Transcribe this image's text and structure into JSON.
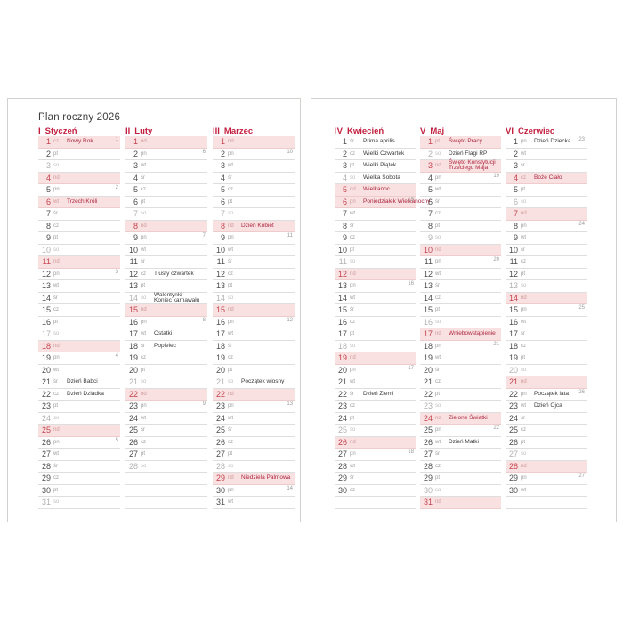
{
  "page": {
    "title": "Plan roczny 2026"
  },
  "colors": {
    "accent": "#c32040",
    "sunday_number": "#c4424e",
    "holiday_text": "#ad2740",
    "highlight_bg": "#f9e1e1",
    "row_line": "#dedede"
  },
  "calendar": {
    "months": [
      {
        "numeral": "I",
        "name": "Styczeń",
        "days": [
          {
            "d": 1,
            "wd": "cz",
            "hl": true,
            "h": "Nowy Rok",
            "hr": true,
            "wk": 1
          },
          {
            "d": 2,
            "wd": "pt"
          },
          {
            "d": 3,
            "wd": "so",
            "sat": true
          },
          {
            "d": 4,
            "wd": "nd",
            "hl": true
          },
          {
            "d": 5,
            "wd": "pn",
            "wk": 2
          },
          {
            "d": 6,
            "wd": "wt",
            "hl": true,
            "h": "Trzech Króli",
            "hr": true
          },
          {
            "d": 7,
            "wd": "śr"
          },
          {
            "d": 8,
            "wd": "cz"
          },
          {
            "d": 9,
            "wd": "pt"
          },
          {
            "d": 10,
            "wd": "so",
            "sat": true
          },
          {
            "d": 11,
            "wd": "nd",
            "hl": true
          },
          {
            "d": 12,
            "wd": "pn",
            "wk": 3
          },
          {
            "d": 13,
            "wd": "wt"
          },
          {
            "d": 14,
            "wd": "śr"
          },
          {
            "d": 15,
            "wd": "cz"
          },
          {
            "d": 16,
            "wd": "pt"
          },
          {
            "d": 17,
            "wd": "so",
            "sat": true
          },
          {
            "d": 18,
            "wd": "nd",
            "hl": true
          },
          {
            "d": 19,
            "wd": "pn",
            "wk": 4
          },
          {
            "d": 20,
            "wd": "wt"
          },
          {
            "d": 21,
            "wd": "śr",
            "h": "Dzień Babci"
          },
          {
            "d": 22,
            "wd": "cz",
            "h": "Dzień Dziadka"
          },
          {
            "d": 23,
            "wd": "pt"
          },
          {
            "d": 24,
            "wd": "so",
            "sat": true
          },
          {
            "d": 25,
            "wd": "nd",
            "hl": true
          },
          {
            "d": 26,
            "wd": "pn",
            "wk": 5
          },
          {
            "d": 27,
            "wd": "wt"
          },
          {
            "d": 28,
            "wd": "śr"
          },
          {
            "d": 29,
            "wd": "cz"
          },
          {
            "d": 30,
            "wd": "pt"
          },
          {
            "d": 31,
            "wd": "so",
            "sat": true
          }
        ]
      },
      {
        "numeral": "II",
        "name": "Luty",
        "days": [
          {
            "d": 1,
            "wd": "nd",
            "hl": true
          },
          {
            "d": 2,
            "wd": "pn",
            "wk": 6
          },
          {
            "d": 3,
            "wd": "wt"
          },
          {
            "d": 4,
            "wd": "śr"
          },
          {
            "d": 5,
            "wd": "cz"
          },
          {
            "d": 6,
            "wd": "pt"
          },
          {
            "d": 7,
            "wd": "so",
            "sat": true
          },
          {
            "d": 8,
            "wd": "nd",
            "hl": true
          },
          {
            "d": 9,
            "wd": "pn",
            "wk": 7
          },
          {
            "d": 10,
            "wd": "wt"
          },
          {
            "d": 11,
            "wd": "śr"
          },
          {
            "d": 12,
            "wd": "cz",
            "h": "Tłusty czwartek"
          },
          {
            "d": 13,
            "wd": "pt"
          },
          {
            "d": 14,
            "wd": "so",
            "sat": true,
            "h": "Walentynki",
            "h2": "Koniec karnawału"
          },
          {
            "d": 15,
            "wd": "nd",
            "hl": true
          },
          {
            "d": 16,
            "wd": "pn",
            "wk": 8
          },
          {
            "d": 17,
            "wd": "wt",
            "h": "Ostatki"
          },
          {
            "d": 18,
            "wd": "śr",
            "h": "Popielec"
          },
          {
            "d": 19,
            "wd": "cz"
          },
          {
            "d": 20,
            "wd": "pt"
          },
          {
            "d": 21,
            "wd": "so",
            "sat": true
          },
          {
            "d": 22,
            "wd": "nd",
            "hl": true
          },
          {
            "d": 23,
            "wd": "pn",
            "wk": 9
          },
          {
            "d": 24,
            "wd": "wt"
          },
          {
            "d": 25,
            "wd": "śr"
          },
          {
            "d": 26,
            "wd": "cz"
          },
          {
            "d": 27,
            "wd": "pt"
          },
          {
            "d": 28,
            "wd": "so",
            "sat": true
          },
          {},
          {},
          {}
        ]
      },
      {
        "numeral": "III",
        "name": "Marzec",
        "days": [
          {
            "d": 1,
            "wd": "nd",
            "hl": true
          },
          {
            "d": 2,
            "wd": "pn",
            "wk": 10
          },
          {
            "d": 3,
            "wd": "wt"
          },
          {
            "d": 4,
            "wd": "śr"
          },
          {
            "d": 5,
            "wd": "cz"
          },
          {
            "d": 6,
            "wd": "pt"
          },
          {
            "d": 7,
            "wd": "so",
            "sat": true
          },
          {
            "d": 8,
            "wd": "nd",
            "hl": true,
            "h": "Dzień Kobiet",
            "hr": true
          },
          {
            "d": 9,
            "wd": "pn",
            "wk": 11
          },
          {
            "d": 10,
            "wd": "wt"
          },
          {
            "d": 11,
            "wd": "śr"
          },
          {
            "d": 12,
            "wd": "cz"
          },
          {
            "d": 13,
            "wd": "pt"
          },
          {
            "d": 14,
            "wd": "so",
            "sat": true
          },
          {
            "d": 15,
            "wd": "nd",
            "hl": true
          },
          {
            "d": 16,
            "wd": "pn",
            "wk": 12
          },
          {
            "d": 17,
            "wd": "wt"
          },
          {
            "d": 18,
            "wd": "śr"
          },
          {
            "d": 19,
            "wd": "cz"
          },
          {
            "d": 20,
            "wd": "pt"
          },
          {
            "d": 21,
            "wd": "so",
            "sat": true,
            "h": "Początek wiosny"
          },
          {
            "d": 22,
            "wd": "nd",
            "hl": true
          },
          {
            "d": 23,
            "wd": "pn",
            "wk": 13
          },
          {
            "d": 24,
            "wd": "wt"
          },
          {
            "d": 25,
            "wd": "śr"
          },
          {
            "d": 26,
            "wd": "cz"
          },
          {
            "d": 27,
            "wd": "pt"
          },
          {
            "d": 28,
            "wd": "so",
            "sat": true
          },
          {
            "d": 29,
            "wd": "nd",
            "hl": true,
            "h": "Niedziela Palmowa",
            "hr": true
          },
          {
            "d": 30,
            "wd": "pn",
            "wk": 14
          },
          {
            "d": 31,
            "wd": "wt"
          }
        ]
      },
      {
        "numeral": "IV",
        "name": "Kwiecień",
        "days": [
          {
            "d": 1,
            "wd": "śr",
            "h": "Prima aprilis"
          },
          {
            "d": 2,
            "wd": "cz",
            "h": "Wielki Czwartek"
          },
          {
            "d": 3,
            "wd": "pt",
            "h": "Wielki Piątek"
          },
          {
            "d": 4,
            "wd": "so",
            "sat": true,
            "h": "Wielka Sobota"
          },
          {
            "d": 5,
            "wd": "nd",
            "hl": true,
            "h": "Wielkanoc",
            "hr": true
          },
          {
            "d": 6,
            "wd": "pn",
            "hl": true,
            "h": "Poniedziałek Wielkanocny",
            "hr": true,
            "wk": 15
          },
          {
            "d": 7,
            "wd": "wt"
          },
          {
            "d": 8,
            "wd": "śr"
          },
          {
            "d": 9,
            "wd": "cz"
          },
          {
            "d": 10,
            "wd": "pt"
          },
          {
            "d": 11,
            "wd": "so",
            "sat": true
          },
          {
            "d": 12,
            "wd": "nd",
            "hl": true
          },
          {
            "d": 13,
            "wd": "pn",
            "wk": 16
          },
          {
            "d": 14,
            "wd": "wt"
          },
          {
            "d": 15,
            "wd": "śr"
          },
          {
            "d": 16,
            "wd": "cz"
          },
          {
            "d": 17,
            "wd": "pt"
          },
          {
            "d": 18,
            "wd": "so",
            "sat": true
          },
          {
            "d": 19,
            "wd": "nd",
            "hl": true
          },
          {
            "d": 20,
            "wd": "pn",
            "wk": 17
          },
          {
            "d": 21,
            "wd": "wt"
          },
          {
            "d": 22,
            "wd": "śr",
            "h": "Dzień Ziemi"
          },
          {
            "d": 23,
            "wd": "cz"
          },
          {
            "d": 24,
            "wd": "pt"
          },
          {
            "d": 25,
            "wd": "so",
            "sat": true
          },
          {
            "d": 26,
            "wd": "nd",
            "hl": true
          },
          {
            "d": 27,
            "wd": "pn",
            "wk": 18
          },
          {
            "d": 28,
            "wd": "wt"
          },
          {
            "d": 29,
            "wd": "śr"
          },
          {
            "d": 30,
            "wd": "cz"
          },
          {}
        ]
      },
      {
        "numeral": "V",
        "name": "Maj",
        "days": [
          {
            "d": 1,
            "wd": "pt",
            "hl": true,
            "h": "Święto Pracy",
            "hr": true
          },
          {
            "d": 2,
            "wd": "so",
            "sat": true,
            "h": "Dzień Flagi RP"
          },
          {
            "d": 3,
            "wd": "nd",
            "hl": true,
            "h": "Święto Konstytucji",
            "h2": "Trzeciego Maja",
            "hr": true
          },
          {
            "d": 4,
            "wd": "pn",
            "wk": 19
          },
          {
            "d": 5,
            "wd": "wt"
          },
          {
            "d": 6,
            "wd": "śr"
          },
          {
            "d": 7,
            "wd": "cz"
          },
          {
            "d": 8,
            "wd": "pt"
          },
          {
            "d": 9,
            "wd": "so",
            "sat": true
          },
          {
            "d": 10,
            "wd": "nd",
            "hl": true
          },
          {
            "d": 11,
            "wd": "pn",
            "wk": 20
          },
          {
            "d": 12,
            "wd": "wt"
          },
          {
            "d": 13,
            "wd": "śr"
          },
          {
            "d": 14,
            "wd": "cz"
          },
          {
            "d": 15,
            "wd": "pt"
          },
          {
            "d": 16,
            "wd": "so",
            "sat": true
          },
          {
            "d": 17,
            "wd": "nd",
            "hl": true,
            "h": "Wniebowstąpienie",
            "hr": true
          },
          {
            "d": 18,
            "wd": "pn",
            "wk": 21
          },
          {
            "d": 19,
            "wd": "wt"
          },
          {
            "d": 20,
            "wd": "śr"
          },
          {
            "d": 21,
            "wd": "cz"
          },
          {
            "d": 22,
            "wd": "pt"
          },
          {
            "d": 23,
            "wd": "so",
            "sat": true
          },
          {
            "d": 24,
            "wd": "nd",
            "hl": true,
            "h": "Zielone Świątki",
            "hr": true
          },
          {
            "d": 25,
            "wd": "pn",
            "wk": 22
          },
          {
            "d": 26,
            "wd": "wt",
            "h": "Dzień Matki"
          },
          {
            "d": 27,
            "wd": "śr"
          },
          {
            "d": 28,
            "wd": "cz"
          },
          {
            "d": 29,
            "wd": "pt"
          },
          {
            "d": 30,
            "wd": "so",
            "sat": true
          },
          {
            "d": 31,
            "wd": "nd",
            "hl": true
          }
        ]
      },
      {
        "numeral": "VI",
        "name": "Czerwiec",
        "days": [
          {
            "d": 1,
            "wd": "pn",
            "h": "Dzień Dziecka",
            "wk": 23
          },
          {
            "d": 2,
            "wd": "wt"
          },
          {
            "d": 3,
            "wd": "śr"
          },
          {
            "d": 4,
            "wd": "cz",
            "hl": true,
            "h": "Boże Ciało",
            "hr": true
          },
          {
            "d": 5,
            "wd": "pt"
          },
          {
            "d": 6,
            "wd": "so",
            "sat": true
          },
          {
            "d": 7,
            "wd": "nd",
            "hl": true
          },
          {
            "d": 8,
            "wd": "pn",
            "wk": 24
          },
          {
            "d": 9,
            "wd": "wt"
          },
          {
            "d": 10,
            "wd": "śr"
          },
          {
            "d": 11,
            "wd": "cz"
          },
          {
            "d": 12,
            "wd": "pt"
          },
          {
            "d": 13,
            "wd": "so",
            "sat": true
          },
          {
            "d": 14,
            "wd": "nd",
            "hl": true
          },
          {
            "d": 15,
            "wd": "pn",
            "wk": 25
          },
          {
            "d": 16,
            "wd": "wt"
          },
          {
            "d": 17,
            "wd": "śr"
          },
          {
            "d": 18,
            "wd": "cz"
          },
          {
            "d": 19,
            "wd": "pt"
          },
          {
            "d": 20,
            "wd": "so",
            "sat": true
          },
          {
            "d": 21,
            "wd": "nd",
            "hl": true
          },
          {
            "d": 22,
            "wd": "pn",
            "h": "Początek lata",
            "wk": 26
          },
          {
            "d": 23,
            "wd": "wt",
            "h": "Dzień Ojca"
          },
          {
            "d": 24,
            "wd": "śr"
          },
          {
            "d": 25,
            "wd": "cz"
          },
          {
            "d": 26,
            "wd": "pt"
          },
          {
            "d": 27,
            "wd": "so",
            "sat": true
          },
          {
            "d": 28,
            "wd": "nd",
            "hl": true
          },
          {
            "d": 29,
            "wd": "pn",
            "wk": 27
          },
          {
            "d": 30,
            "wd": "wt"
          },
          {}
        ]
      }
    ]
  }
}
